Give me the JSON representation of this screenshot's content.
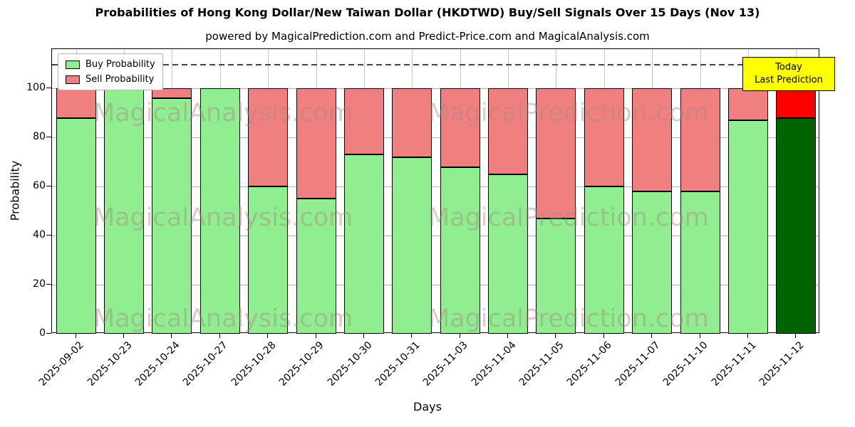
{
  "chart_data": {
    "type": "bar",
    "stacked": true,
    "title": "Probabilities of Hong Kong Dollar/New Taiwan Dollar (HKDTWD) Buy/Sell Signals Over 15 Days (Nov 13)",
    "subtitle": "powered by MagicalPrediction.com and Predict-Price.com and MagicalAnalysis.com",
    "xlabel": "Days",
    "ylabel": "Probability",
    "categories": [
      "2025-09-02",
      "2025-10-23",
      "2025-10-24",
      "2025-10-27",
      "2025-10-28",
      "2025-10-29",
      "2025-10-30",
      "2025-10-31",
      "2025-11-03",
      "2025-11-04",
      "2025-11-05",
      "2025-11-06",
      "2025-11-07",
      "2025-11-10",
      "2025-11-11",
      "2025-11-12"
    ],
    "series": [
      {
        "name": "Buy Probability",
        "color": "#90EE90",
        "values": [
          88,
          100,
          96,
          100,
          60,
          55,
          73,
          72,
          68,
          65,
          47,
          60,
          58,
          58,
          87,
          88
        ]
      },
      {
        "name": "Sell Probability",
        "color": "#F08080",
        "values": [
          12,
          0,
          4,
          0,
          40,
          45,
          27,
          28,
          32,
          35,
          53,
          40,
          42,
          42,
          13,
          12
        ]
      }
    ],
    "today_index": 15,
    "today_colors": {
      "buy": "#006400",
      "sell": "#FF0000"
    },
    "yticks": [
      0,
      20,
      40,
      60,
      80,
      100
    ],
    "ylim": [
      0,
      116
    ],
    "dashed_line_y": 110,
    "grid": true,
    "legend_position": "upper left"
  },
  "annotation": {
    "line1": "Today",
    "line2": "Last Prediction",
    "bg": "#FFFF00"
  },
  "watermarks": {
    "left": "MagicalAnalysis.com",
    "right": "MagicalPrediction.com"
  }
}
